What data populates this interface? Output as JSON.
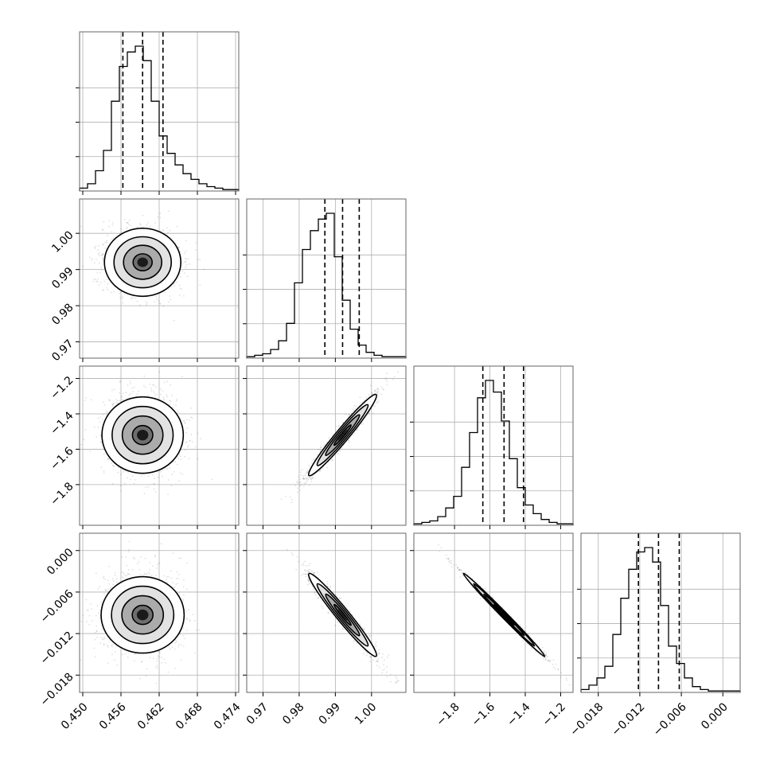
{
  "chart_data": {
    "type": "corner",
    "title": "",
    "parameters": [
      {
        "index": 0,
        "range": [
          0.4495,
          0.4745
        ],
        "ticks": [
          0.45,
          0.456,
          0.462,
          0.468,
          0.474
        ],
        "tick_labels": [
          "0.450",
          "0.456",
          "0.462",
          "0.468",
          "0.474"
        ],
        "median": 0.4594,
        "q16": 0.4563,
        "q84": 0.4626
      },
      {
        "index": 1,
        "range": [
          0.9655,
          1.0095
        ],
        "ticks": [
          0.97,
          0.98,
          0.99,
          1.0
        ],
        "tick_labels": [
          "0.97",
          "0.98",
          "0.99",
          "1.00"
        ],
        "median": 0.992,
        "q16": 0.9871,
        "q84": 0.9966
      },
      {
        "index": 2,
        "range": [
          -2.03,
          -1.13
        ],
        "ticks": [
          -1.8,
          -1.6,
          -1.4,
          -1.2
        ],
        "tick_labels": [
          "−1.8",
          "−1.6",
          "−1.4",
          "−1.2"
        ],
        "median": -1.52,
        "q16": -1.64,
        "q84": -1.41
      },
      {
        "index": 3,
        "range": [
          -0.0205,
          0.0025
        ],
        "ticks": [
          -0.018,
          -0.012,
          -0.006,
          0.0
        ],
        "tick_labels": [
          "−0.018",
          "−0.012",
          "−0.006",
          "0.000"
        ],
        "median": -0.0093,
        "q16": -0.0122,
        "q84": -0.0063
      }
    ],
    "histograms": [
      {
        "param": 0,
        "bin_start": 0.4495,
        "bin_width": 0.00125,
        "counts": [
          2,
          5,
          14,
          28,
          62,
          86,
          96,
          100,
          90,
          62,
          38,
          26,
          18,
          12,
          8,
          5,
          3,
          2,
          1,
          1
        ]
      },
      {
        "param": 1,
        "bin_start": 0.9655,
        "bin_width": 0.0022,
        "counts": [
          1,
          2,
          3,
          6,
          12,
          24,
          52,
          75,
          88,
          96,
          100,
          70,
          40,
          20,
          9,
          4,
          2,
          1,
          1,
          1
        ]
      },
      {
        "param": 2,
        "bin_start": -2.03,
        "bin_width": 0.045,
        "counts": [
          1,
          2,
          3,
          6,
          12,
          20,
          40,
          64,
          88,
          100,
          92,
          72,
          46,
          26,
          14,
          8,
          4,
          2,
          1,
          1
        ]
      },
      {
        "param": 3,
        "bin_start": -0.0205,
        "bin_width": 0.00115,
        "counts": [
          2,
          5,
          10,
          18,
          40,
          65,
          85,
          97,
          100,
          90,
          60,
          32,
          20,
          10,
          4,
          2,
          1,
          1,
          1,
          1
        ]
      }
    ],
    "pairs": [
      {
        "x": 0,
        "y": 1,
        "correlation": 0.0,
        "mean": [
          0.4594,
          0.992
        ],
        "std": [
          0.003,
          0.0047
        ]
      },
      {
        "x": 0,
        "y": 2,
        "correlation": 0.0,
        "mean": [
          0.4594,
          -1.52
        ],
        "std": [
          0.003,
          0.115
        ]
      },
      {
        "x": 1,
        "y": 2,
        "correlation": 0.97,
        "mean": [
          0.992,
          -1.52
        ],
        "std": [
          0.0047,
          0.115
        ]
      },
      {
        "x": 0,
        "y": 3,
        "correlation": 0.0,
        "mean": [
          0.4594,
          -0.0093
        ],
        "std": [
          0.003,
          0.003
        ]
      },
      {
        "x": 1,
        "y": 3,
        "correlation": -0.97,
        "mean": [
          0.992,
          -0.0093
        ],
        "std": [
          0.0047,
          0.003
        ]
      },
      {
        "x": 2,
        "y": 3,
        "correlation": -0.995,
        "mean": [
          -1.52,
          -0.0093
        ],
        "std": [
          0.115,
          0.003
        ]
      }
    ],
    "contour_levels_sigma": [
      0.5,
      1.0,
      1.5,
      2.0
    ],
    "grid": true,
    "quantile_lines": "dashed"
  }
}
